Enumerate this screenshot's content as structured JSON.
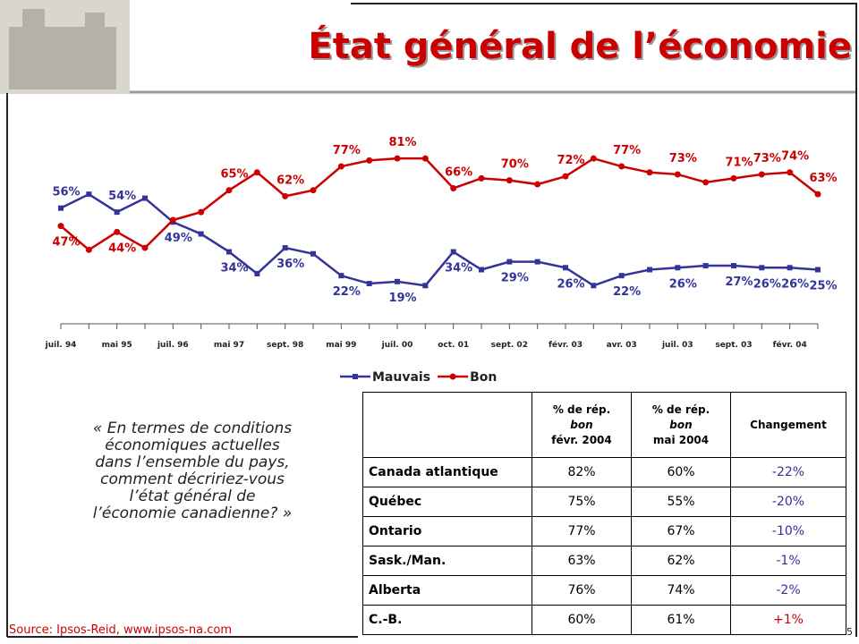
{
  "header": {
    "title": "État général de l’économie"
  },
  "chart_data": {
    "type": "line",
    "categories": [
      "juil. 94",
      null,
      "mai 95",
      null,
      "juil. 96",
      null,
      "mai 97",
      null,
      "sept. 98",
      null,
      "mai 99",
      null,
      "juil. 00",
      null,
      "oct. 01",
      null,
      "sept. 02",
      null,
      "févr. 03",
      null,
      "avr. 03",
      null,
      "juil. 03",
      null,
      "sept. 03",
      null,
      "févr. 04",
      null
    ],
    "ylim": [
      0,
      100
    ],
    "legend": "bottom",
    "series": [
      {
        "name": "Mauvais",
        "color": "#333399",
        "marker": "square",
        "values": [
          56,
          63,
          54,
          61,
          49,
          43,
          34,
          23,
          36,
          33,
          22,
          18,
          19,
          17,
          34,
          25,
          29,
          29,
          26,
          17,
          22,
          25,
          26,
          27,
          27,
          26,
          26,
          25
        ],
        "value_labels": [
          "56%",
          null,
          "54%",
          null,
          "49%",
          null,
          "34%",
          null,
          "36%",
          null,
          "22%",
          null,
          "19%",
          null,
          "34%",
          null,
          "29%",
          null,
          "26%",
          null,
          "22%",
          null,
          "26%",
          null,
          "27%",
          "26%",
          "26%",
          "25%"
        ]
      },
      {
        "name": "Bon",
        "color": "#cc0000",
        "marker": "circle",
        "values": [
          47,
          35,
          44,
          36,
          50,
          54,
          65,
          74,
          62,
          65,
          77,
          80,
          81,
          81,
          66,
          71,
          70,
          68,
          72,
          81,
          77,
          74,
          73,
          69,
          71,
          73,
          74,
          63
        ],
        "value_labels": [
          "47%",
          null,
          "44%",
          null,
          null,
          null,
          "65%",
          null,
          "62%",
          null,
          "77%",
          null,
          "81%",
          null,
          "66%",
          null,
          "70%",
          null,
          "72%",
          null,
          "77%",
          null,
          "73%",
          null,
          "71%",
          "73%",
          "74%",
          "63%"
        ]
      }
    ]
  },
  "question": [
    "« En termes de conditions",
    "économiques actuelles",
    "dans l’ensemble du pays,",
    "comment décririez-vous",
    "l’état général de",
    "l’économie canadienne? »"
  ],
  "table": {
    "header": [
      [
        "% de rép.",
        "bon",
        "févr. 2004"
      ],
      [
        "% de rép.",
        "bon",
        "mai 2004"
      ],
      [
        "Changement"
      ]
    ],
    "rows": [
      [
        "Canada atlantique",
        "82%",
        "60%",
        "-22%"
      ],
      [
        "Québec",
        "75%",
        "55%",
        "-20%"
      ],
      [
        "Ontario",
        "77%",
        "67%",
        "-10%"
      ],
      [
        "Sask./Man.",
        "63%",
        "62%",
        "-1%"
      ],
      [
        "Alberta",
        "76%",
        "74%",
        "-2%"
      ],
      [
        "C.-B.",
        "60%",
        "61%",
        "+1%"
      ]
    ],
    "decrease_color": "#333399",
    "increase_color": "#cc0000"
  },
  "source": "Source: Ipsos-Reid, www.ipsos-na.com",
  "page_number": "5"
}
